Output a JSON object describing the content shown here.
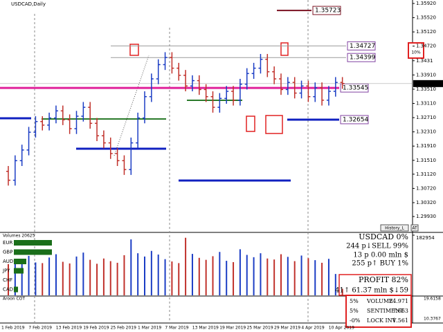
{
  "chart_data": [
    {
      "type": "ohlc",
      "title": "USDCAD,Daily",
      "categories": [
        "1 Feb 2019",
        null,
        null,
        null,
        "7 Feb 2019",
        null,
        null,
        null,
        "13 Feb 2019",
        null,
        null,
        null,
        "19 Feb 2019",
        null,
        null,
        null,
        "25 Feb 2019",
        null,
        null,
        null,
        "1 Mar 2019",
        null,
        null,
        null,
        "7 Mar 2019",
        null,
        null,
        null,
        "13 Mar 2019",
        null,
        null,
        null,
        "19 Mar 2019",
        null,
        null,
        null,
        "25 Mar 2019",
        null,
        null,
        null,
        "29 Mar 2019",
        null,
        null,
        null,
        "4 Apr 2019",
        null,
        null,
        null,
        "10 Apr 2019",
        null
      ],
      "open": [
        1.312,
        1.3095,
        1.315,
        1.318,
        1.323,
        1.326,
        1.325,
        1.327,
        1.329,
        1.3265,
        1.324,
        1.3275,
        1.33,
        1.3255,
        1.322,
        1.32,
        1.317,
        1.315,
        1.3125,
        1.32,
        1.327,
        1.333,
        1.338,
        1.342,
        1.344,
        1.341,
        1.339,
        1.336,
        1.3375,
        1.335,
        1.333,
        1.33,
        1.3325,
        1.3345,
        1.332,
        1.3365,
        1.3395,
        1.341,
        1.3435,
        1.34,
        1.338,
        1.335,
        1.337,
        1.334,
        1.336,
        1.333,
        1.3355,
        1.332,
        1.3345,
        1.337
      ],
      "high": [
        1.3135,
        1.3165,
        1.3195,
        1.3245,
        1.3275,
        1.3275,
        1.3285,
        1.3305,
        1.3305,
        1.328,
        1.329,
        1.3315,
        1.3315,
        1.327,
        1.3235,
        1.3215,
        1.3185,
        1.3165,
        1.3215,
        1.3285,
        1.3345,
        1.3395,
        1.3435,
        1.3455,
        1.3455,
        1.3425,
        1.3405,
        1.339,
        1.339,
        1.3365,
        1.3345,
        1.334,
        1.336,
        1.336,
        1.338,
        1.341,
        1.3425,
        1.345,
        1.345,
        1.3415,
        1.3395,
        1.3385,
        1.3385,
        1.3375,
        1.3375,
        1.337,
        1.337,
        1.336,
        1.3385,
        1.3385
      ],
      "low": [
        1.308,
        1.308,
        1.3135,
        1.3165,
        1.3215,
        1.3235,
        1.3235,
        1.3255,
        1.325,
        1.3225,
        1.3225,
        1.326,
        1.324,
        1.3205,
        1.3185,
        1.3155,
        1.3135,
        1.311,
        1.311,
        1.3185,
        1.3255,
        1.3315,
        1.3365,
        1.3405,
        1.3395,
        1.3375,
        1.3345,
        1.3345,
        1.3335,
        1.3315,
        1.3285,
        1.3285,
        1.331,
        1.3305,
        1.3305,
        1.335,
        1.338,
        1.3395,
        1.3385,
        1.3365,
        1.3335,
        1.3335,
        1.3325,
        1.3325,
        1.3315,
        1.3315,
        1.3305,
        1.3305,
        1.333,
        1.3352
      ],
      "close": [
        1.3095,
        1.315,
        1.318,
        1.323,
        1.326,
        1.325,
        1.327,
        1.329,
        1.3265,
        1.324,
        1.3275,
        1.33,
        1.3255,
        1.322,
        1.32,
        1.317,
        1.315,
        1.3125,
        1.32,
        1.327,
        1.333,
        1.338,
        1.342,
        1.344,
        1.341,
        1.339,
        1.336,
        1.3375,
        1.335,
        1.333,
        1.33,
        1.3325,
        1.3345,
        1.332,
        1.3365,
        1.3395,
        1.341,
        1.3435,
        1.34,
        1.338,
        1.335,
        1.337,
        1.334,
        1.336,
        1.333,
        1.3355,
        1.332,
        1.3345,
        1.337,
        1.3367
      ],
      "up_color": "#1a3cc4",
      "down_color": "#c0302a",
      "ylim": [
        1.29503,
        1.36017
      ],
      "yticks": [
        {
          "value": 1.3592,
          "label": "1.35920"
        },
        {
          "value": 1.3552,
          "label": "1.35520"
        },
        {
          "value": 1.3512,
          "label": "1.35120"
        },
        {
          "value": 1.3472,
          "label": "1.34720"
        },
        1.3431,
        {
          "value": 1.3391,
          "label": "1.33910"
        },
        {
          "value": 1.3351,
          "label": "1.33510"
        },
        {
          "value": 1.3311,
          "label": "1.33110"
        },
        {
          "value": 1.3271,
          "label": "1.32710"
        },
        {
          "value": 1.3231,
          "label": "1.32310"
        },
        {
          "value": 1.3191,
          "label": "1.31910"
        },
        {
          "value": 1.3151,
          "label": "1.31510"
        },
        {
          "value": 1.3112,
          "label": "1.31120"
        },
        {
          "value": 1.3072,
          "label": "1.30720"
        },
        {
          "value": 1.3032,
          "label": "1.30320"
        },
        {
          "value": 1.2993,
          "label": "1.29930"
        }
      ],
      "current_price": 1.33667,
      "levels": [
        1.35723,
        1.34727,
        1.34399,
        1.33545,
        1.32654
      ],
      "level_colors": [
        "#7a1020",
        "#999999",
        "#999999",
        "#e0209a",
        "#1020c0"
      ],
      "badge": "10%",
      "button": "History_L",
      "button2": "AT"
    },
    {
      "type": "bar",
      "title": "Volumes 20625",
      "values": [
        95000,
        110000,
        105000,
        120000,
        100000,
        98000,
        115000,
        125000,
        102000,
        97000,
        118000,
        130000,
        108000,
        96000,
        112000,
        104000,
        99000,
        122000,
        170000,
        128000,
        118000,
        135000,
        124000,
        110000,
        103000,
        98000,
        175000,
        126000,
        114000,
        108000,
        119000,
        132000,
        105000,
        101000,
        140000,
        123000,
        116000,
        128000,
        112000,
        109000,
        125000,
        117000,
        104000,
        121000,
        113000,
        107000,
        99000,
        111000,
        65000,
        20000
      ],
      "ylim": [
        0,
        182954
      ],
      "yticks": [
        182954
      ]
    }
  ],
  "currency_strength": {
    "labels": [
      "EUR",
      "GBP",
      "AUD",
      "JPY",
      "CHF",
      "CAD"
    ],
    "values": [
      5.5,
      5.5,
      1.8,
      1.4,
      0,
      0.6
    ],
    "xlim": [
      0,
      10
    ],
    "color": "#1a6e1a"
  },
  "info_panel": {
    "lines": [
      "USDCAD 0%",
      "244 p↓SELL 99%",
      "13 p   0.00 mln $",
      "255 p↑  BUY 1%",
      "PROFIT 82%",
      "41↑ 61.37 mln $↓59"
    ],
    "colors": [
      "#1a6e1a",
      "#d02020",
      "#1a3cc4",
      "#1a3cc4",
      "#1a6e1a",
      "#1a6e6e"
    ]
  },
  "cot_panel": {
    "title": "Aroon COT",
    "yticks": [
      "19.6158",
      "10.3767"
    ],
    "rows": [
      [
        "5%",
        "VOLUME",
        "24.971"
      ],
      [
        "5%",
        "SENTIMENT",
        "7.663"
      ],
      [
        "-0%",
        "LOCK INV",
        "1.561"
      ]
    ],
    "row_colors": [
      "#222222",
      "#1a3cc4",
      "#c08000"
    ]
  }
}
